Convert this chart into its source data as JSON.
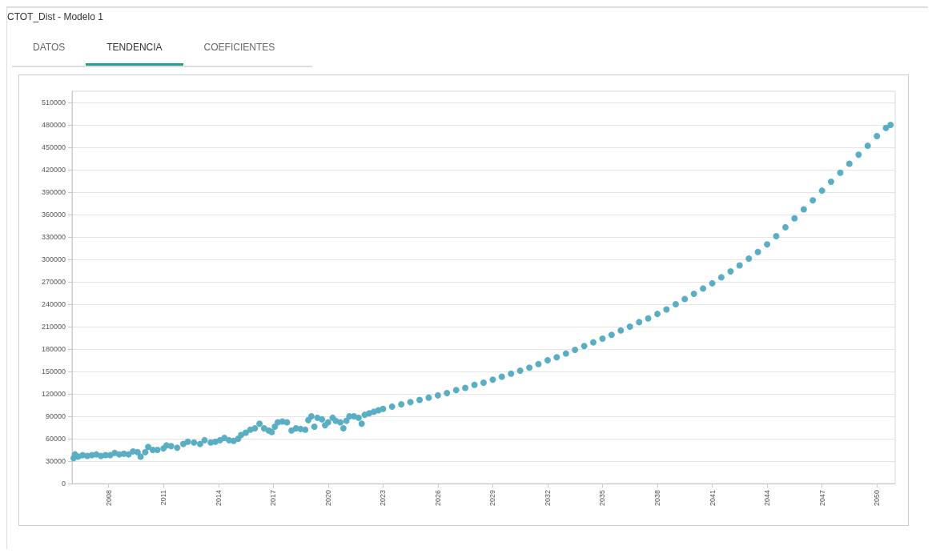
{
  "chart_data": {
    "type": "scatter",
    "title": "CTOT_Dist - Modelo 1",
    "annotations": [
      "DATOS",
      "TENDENCIA",
      "COEFICIENTES"
    ],
    "xlim": [
      "2006",
      "2051"
    ],
    "xticks": [
      "2008",
      "2011",
      "2014",
      "2017",
      "2020",
      "2023",
      "2026",
      "2029",
      "2032",
      "2035",
      "2038",
      "2041",
      "2044",
      "2047",
      "2050"
    ],
    "ylim": [
      0,
      525000
    ],
    "yticks": [
      0,
      30000,
      60000,
      90000,
      120000,
      150000,
      180000,
      210000,
      240000,
      270000,
      300000,
      330000,
      360000,
      390000,
      420000,
      450000,
      480000,
      510000
    ],
    "grid": "y",
    "marker": "circle",
    "series": [
      {
        "color": "#5aaec4",
        "x": [
          "2006-02",
          "2006-03",
          "2006-05",
          "2006-08",
          "2006-11",
          "2007-02",
          "2007-05",
          "2007-08",
          "2007-11",
          "2008-02",
          "2008-05",
          "2008-08",
          "2008-11",
          "2009-02",
          "2009-05",
          "2009-08",
          "2009-10",
          "2010-01",
          "2010-03",
          "2010-06",
          "2010-09",
          "2011-01",
          "2011-03",
          "2011-06",
          "2011-10",
          "2012-02",
          "2012-05",
          "2012-09",
          "2013-01",
          "2013-04",
          "2013-08",
          "2013-11",
          "2014-02",
          "2014-05",
          "2014-08",
          "2014-11",
          "2015-02",
          "2015-04",
          "2015-07",
          "2015-10",
          "2016-01",
          "2016-04",
          "2016-07",
          "2016-10",
          "2016-12",
          "2017-02",
          "2017-04",
          "2017-07",
          "2017-10",
          "2018-01",
          "2018-04",
          "2018-07",
          "2018-10",
          "2018-12",
          "2019-02",
          "2019-04",
          "2019-06",
          "2019-09",
          "2019-11",
          "2020-01",
          "2020-04",
          "2020-06",
          "2020-09",
          "2020-11",
          "2021-01",
          "2021-03",
          "2021-06",
          "2021-09",
          "2021-11",
          "2022-01",
          "2022-04",
          "2022-07",
          "2022-10",
          "2023-01",
          "2023-07",
          "2024-01",
          "2024-07",
          "2025-01",
          "2025-07",
          "2026-01",
          "2026-07",
          "2027-01",
          "2027-07",
          "2028-01",
          "2028-07",
          "2029-01",
          "2029-07",
          "2030-01",
          "2030-07",
          "2031-01",
          "2031-07",
          "2032-01",
          "2032-07",
          "2033-01",
          "2033-07",
          "2034-01",
          "2034-07",
          "2035-01",
          "2035-07",
          "2036-01",
          "2036-07",
          "2037-01",
          "2037-07",
          "2038-01",
          "2038-07",
          "2039-01",
          "2039-07",
          "2040-01",
          "2040-07",
          "2041-01",
          "2041-07",
          "2042-01",
          "2042-07",
          "2043-01",
          "2043-07",
          "2044-01",
          "2044-07",
          "2045-01",
          "2045-07",
          "2046-01",
          "2046-07",
          "2047-01",
          "2047-07",
          "2048-01",
          "2048-07",
          "2049-01",
          "2049-07",
          "2050-01",
          "2050-07",
          "2050-10"
        ],
        "values": [
          34000,
          39000,
          36000,
          38000,
          37000,
          38000,
          39000,
          37000,
          38000,
          38000,
          41000,
          39000,
          40000,
          39000,
          43000,
          42000,
          36000,
          42000,
          49000,
          45000,
          45000,
          47000,
          51000,
          50000,
          48000,
          53000,
          56000,
          55000,
          53000,
          58000,
          55000,
          56000,
          58000,
          61000,
          58000,
          57000,
          60000,
          65000,
          68000,
          72000,
          74000,
          80000,
          74000,
          71000,
          69000,
          76000,
          82000,
          83000,
          82000,
          71000,
          74000,
          73000,
          72000,
          85000,
          90000,
          76000,
          88000,
          86000,
          78000,
          82000,
          88000,
          84000,
          82000,
          74000,
          84000,
          90000,
          90000,
          88000,
          80000,
          92000,
          94000,
          96000,
          98000,
          100000,
          103000,
          106000,
          109000,
          112000,
          115000,
          118000,
          121000,
          125000,
          128000,
          132000,
          135000,
          139000,
          143000,
          147000,
          151000,
          155000,
          160000,
          165000,
          169000,
          174000,
          179000,
          184000,
          189000,
          194000,
          199000,
          205000,
          210000,
          216000,
          221000,
          227000,
          233000,
          240000,
          247000,
          254000,
          261000,
          268000,
          276000,
          284000,
          292000,
          301000,
          310000,
          320000,
          331000,
          343000,
          355000,
          367000,
          379000,
          392000,
          404000,
          416000,
          428000,
          440000,
          452000,
          465000,
          476000,
          480000
        ]
      }
    ]
  }
}
